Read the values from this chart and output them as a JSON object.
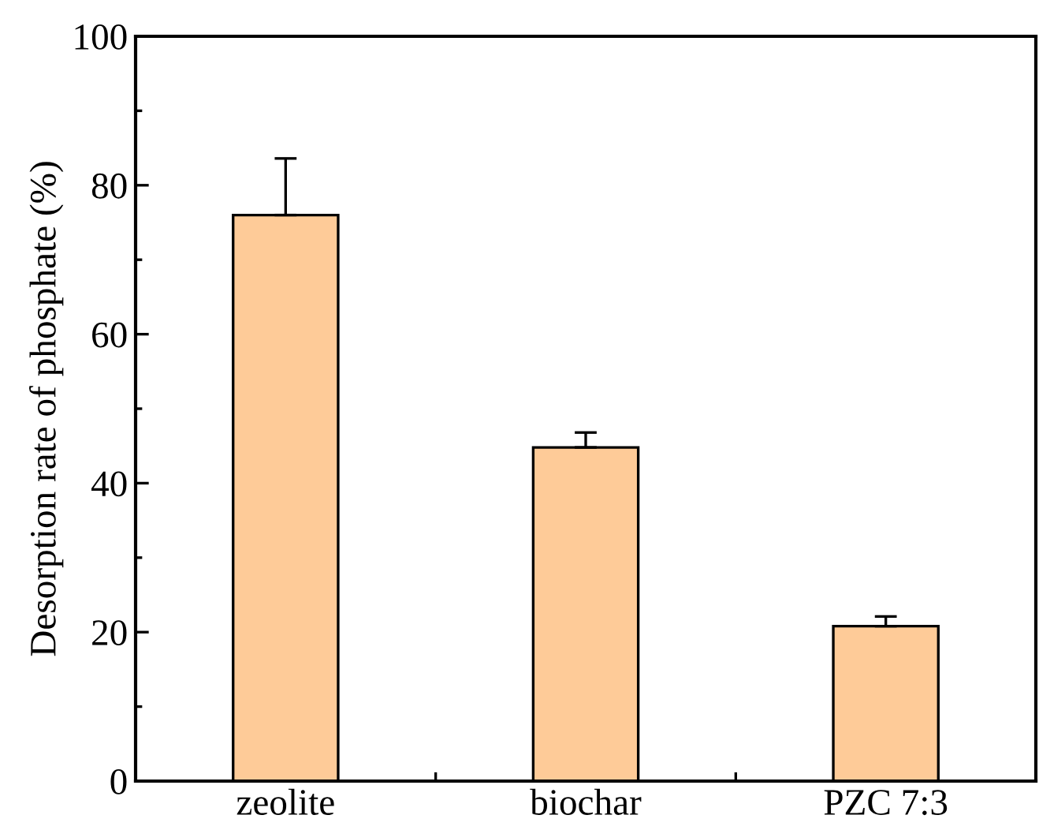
{
  "chart_data": {
    "type": "bar",
    "ylabel": "Desorption rate of phosphate (%)",
    "categories": [
      "zeolite",
      "biochar",
      "PZC 7:3"
    ],
    "values": [
      76.0,
      44.8,
      20.8
    ],
    "errors": [
      [
        76.0,
        83.6
      ],
      [
        44.8,
        46.8
      ],
      [
        20.8,
        22.1
      ]
    ],
    "color": "#fecb98",
    "ylim": [
      0,
      100
    ],
    "yticks": [
      0,
      20,
      40,
      60,
      80,
      100
    ],
    "grid": false,
    "legend": false
  }
}
